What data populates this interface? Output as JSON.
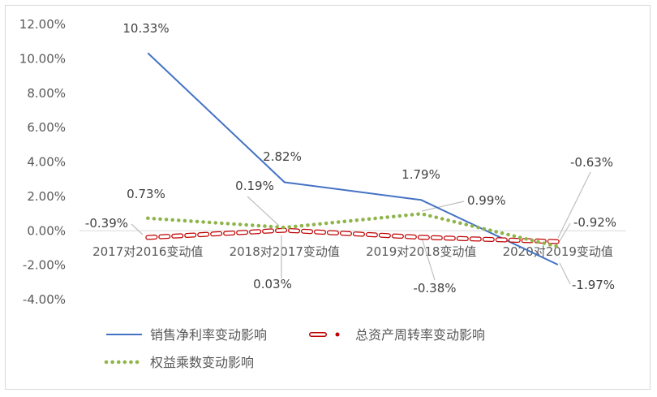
{
  "chart_data": {
    "type": "line",
    "categories": [
      "2017对2016变动值",
      "2018对2017变动值",
      "2019对2018变动值",
      "2020对2019变动值"
    ],
    "ylim": [
      -0.04,
      0.12
    ],
    "ytick_step": 0.02,
    "ytick_labels": [
      "-4.00%",
      "-2.00%",
      "0.00%",
      "2.00%",
      "4.00%",
      "6.00%",
      "8.00%",
      "10.00%",
      "12.00%"
    ],
    "grid": false,
    "legend_position": "bottom",
    "series": [
      {
        "name": "销售净利率变动影响",
        "values": [
          0.1033,
          0.0282,
          0.0179,
          -0.0197
        ],
        "labels": [
          "10.33%",
          "2.82%",
          "1.79%",
          "-1.97%"
        ],
        "color": "#4472c4",
        "style": "solid"
      },
      {
        "name": "总资产周转率变动影响",
        "values": [
          -0.0039,
          0.0003,
          -0.0038,
          -0.0063
        ],
        "labels": [
          "-0.39%",
          "0.03%",
          "-0.38%",
          "-0.63%"
        ],
        "color": "#c00000",
        "style": "dashed"
      },
      {
        "name": "权益乘数变动影响",
        "values": [
          0.0073,
          0.0019,
          0.0099,
          -0.0092
        ],
        "labels": [
          "0.73%",
          "0.19%",
          "0.99%",
          "-0.92%"
        ],
        "color": "#8fb44a",
        "style": "dotted"
      }
    ]
  }
}
